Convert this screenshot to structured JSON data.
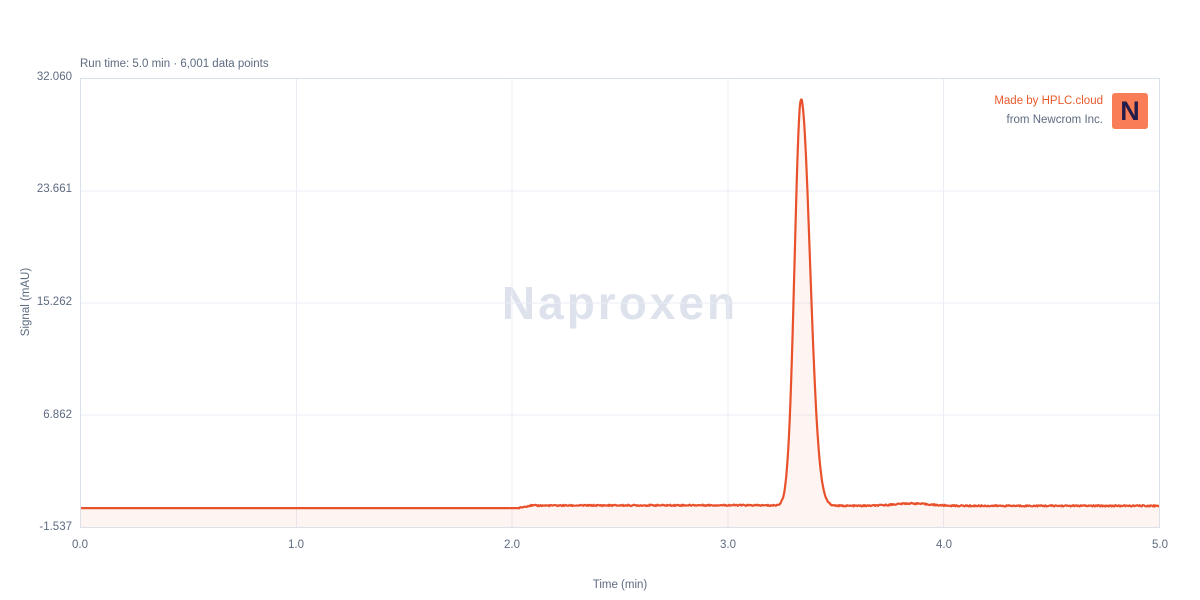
{
  "header": {
    "run_info": "Run time: 5.0 min · 6,001 data points"
  },
  "branding": {
    "made_by": "Made by HPLC.cloud",
    "from_text": "from Newcrom Inc.",
    "logo_letter": "N"
  },
  "colors": {
    "accent_line": "#e8512b",
    "accent_text": "#e85a2b",
    "logo_bg": "#f97d57",
    "logo_letter": "#241c4a",
    "label_text": "#5d6b80",
    "watermark": "#dde2ec",
    "grid": "#e9edf3",
    "plot_border": "#dbe1ea"
  },
  "chart_data": {
    "type": "line",
    "title": "Naproxen",
    "xlabel": "Time (min)",
    "ylabel": "Signal (mAU)",
    "xlim": [
      0.0,
      5.0
    ],
    "ylim": [
      -1.537,
      32.06
    ],
    "x_ticks": {
      "values": [
        0.0,
        1.0,
        2.0,
        3.0,
        4.0,
        5.0
      ],
      "labels": [
        "0.0",
        "1.0",
        "2.0",
        "3.0",
        "4.0",
        "5.0"
      ]
    },
    "y_ticks": {
      "values": [
        32.06,
        23.661,
        15.262,
        6.862,
        -1.537
      ],
      "labels": [
        "32.060",
        "23.661",
        "15.262",
        "6.862",
        "-1.537"
      ]
    },
    "grid": true,
    "legend": false,
    "run_time_min": 5.0,
    "data_points": 6001,
    "series": [
      {
        "name": "Naproxen",
        "color": "#e8512b",
        "fill_opacity": 0.06,
        "line_width": 2.2,
        "baseline_points": [
          [
            0.0,
            -0.12
          ],
          [
            2.03,
            -0.12
          ],
          [
            2.08,
            0.07
          ],
          [
            3.0,
            0.1
          ],
          [
            3.55,
            0.05
          ],
          [
            5.0,
            0.05
          ]
        ],
        "peaks": [
          {
            "retention_time_min": 3.34,
            "height_mau": 30.5,
            "sigma_left_min": 0.03,
            "sigma_right_min": 0.041
          },
          {
            "retention_time_min": 3.85,
            "height_mau": 0.18,
            "sigma_left_min": 0.08,
            "sigma_right_min": 0.08
          }
        ],
        "noise_start_min": 2.03,
        "noise_amplitude_mau": 0.05
      }
    ]
  }
}
